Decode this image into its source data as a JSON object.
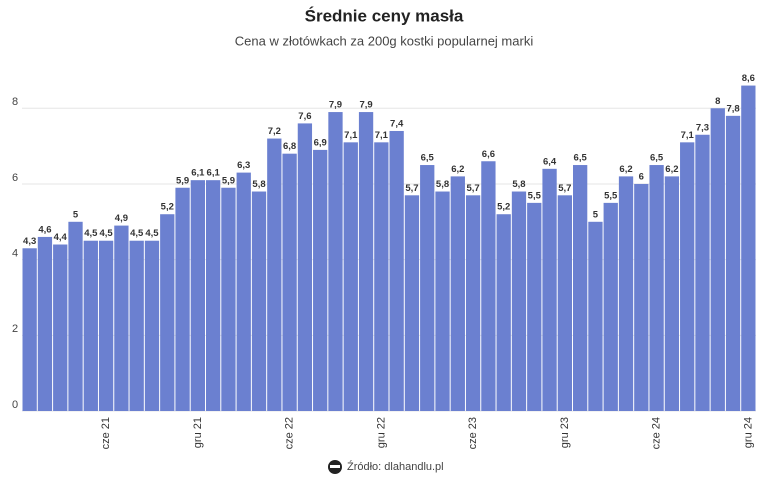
{
  "chart_data": {
    "type": "bar",
    "title": "Średnie ceny masła",
    "subtitle": "Cena w złotówkach za 200g kostki popularnej marki",
    "source": "Źródło: dlahandlu.pl",
    "categories": [
      null,
      null,
      null,
      null,
      null,
      "cze 21",
      null,
      null,
      null,
      null,
      null,
      "gru 21",
      null,
      null,
      null,
      null,
      null,
      "cze 22",
      null,
      null,
      null,
      null,
      null,
      "gru 22",
      null,
      null,
      null,
      null,
      null,
      "cze 23",
      null,
      null,
      null,
      null,
      null,
      "gru 23",
      null,
      null,
      null,
      null,
      null,
      "cze 24",
      null,
      null,
      null,
      null,
      null,
      "gru 24"
    ],
    "values": [
      4.3,
      4.6,
      4.4,
      5,
      4.5,
      4.5,
      4.9,
      4.5,
      4.5,
      5.2,
      5.9,
      6.1,
      6.1,
      5.9,
      6.3,
      5.8,
      7.2,
      6.8,
      7.6,
      6.9,
      7.9,
      7.1,
      7.9,
      7.1,
      7.4,
      5.7,
      6.5,
      5.8,
      6.2,
      5.7,
      6.6,
      5.2,
      5.8,
      5.5,
      6.4,
      5.7,
      6.5,
      5,
      5.5,
      6.2,
      6,
      6.5,
      6.2,
      7.1,
      7.3,
      8,
      7.8,
      8.6
    ],
    "value_labels": [
      "4,3",
      "4,6",
      "4,4",
      "5",
      "4,5",
      "4,5",
      "4,9",
      "4,5",
      "4,5",
      "5,2",
      "5,9",
      "6,1",
      "6,1",
      "5,9",
      "6,3",
      "5,8",
      "7,2",
      "6,8",
      "7,6",
      "6,9",
      "7,9",
      "7,1",
      "7,9",
      "7,1",
      "7,4",
      "5,7",
      "6,5",
      "5,8",
      "6,2",
      "5,7",
      "6,6",
      "5,2",
      "5,8",
      "5,5",
      "6,4",
      "5,7",
      "6,5",
      "5",
      "5,5",
      "6,2",
      "6",
      "6,5",
      "6,2",
      "7,1",
      "7,3",
      "8",
      "7,8",
      "8,6"
    ],
    "color": "#6b80d0",
    "ylim": [
      0,
      8.8
    ],
    "yticks": [
      0,
      2,
      4,
      6,
      8
    ],
    "grid": true
  }
}
